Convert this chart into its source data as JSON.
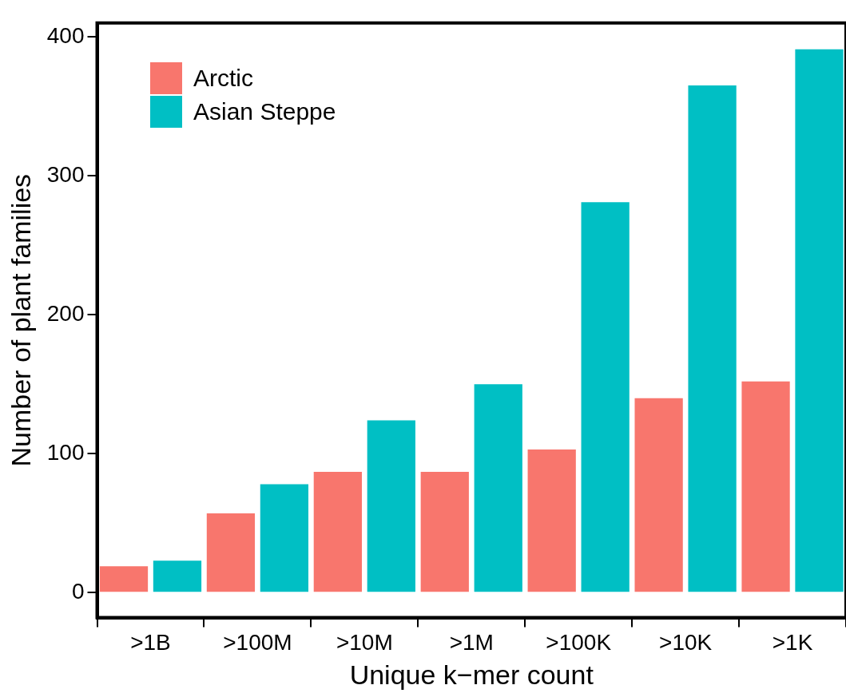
{
  "chart_data": {
    "type": "bar",
    "xlabel": "Unique k−mer count",
    "ylabel": "Number of plant families",
    "categories": [
      ">1B",
      ">100M",
      ">10M",
      ">1M",
      ">100K",
      ">10K",
      ">1K"
    ],
    "series": [
      {
        "name": "Arctic",
        "color": "#f8766d",
        "values": [
          19,
          57,
          87,
          87,
          103,
          140,
          152
        ]
      },
      {
        "name": "Asian Steppe",
        "color": "#00bfc4",
        "values": [
          23,
          78,
          124,
          150,
          281,
          365,
          391
        ]
      }
    ],
    "ylim": [
      -18,
      410
    ],
    "yticks": [
      0,
      100,
      200,
      300,
      400
    ],
    "grid": false,
    "legend": "top left"
  }
}
